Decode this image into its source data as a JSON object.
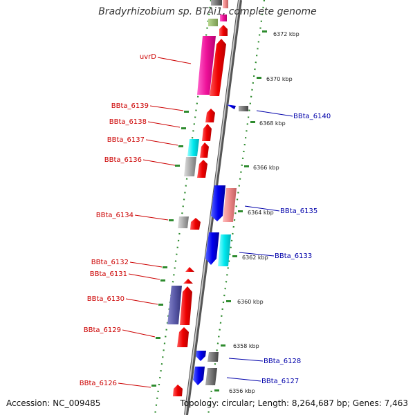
{
  "title": "Bradyrhizobium sp. BTAi1, complete genome",
  "footer": {
    "accession": "Accession: NC_009485",
    "topology": "Topology: circular; Length: 8,264,687 bp; Genes: 7,463"
  },
  "colors": {
    "minus_label": "#cc0000",
    "plus_label": "#0000aa",
    "ruler_dots": "#2e8b2e",
    "backbone": "#8a8a8a"
  },
  "scale": {
    "unit": "kbp",
    "ticks": [
      6356,
      6358,
      6360,
      6362,
      6364,
      6366,
      6368,
      6370,
      6372
    ]
  },
  "minus_strand_labels": [
    "uvrD",
    "BBta_6139",
    "BBta_6138",
    "BBta_6137",
    "BBta_6136",
    "BBta_6134",
    "BBta_6132",
    "BBta_6131",
    "BBta_6130",
    "BBta_6129",
    "BBta_6126"
  ],
  "plus_strand_labels": [
    "BBta_6140",
    "BBta_6135",
    "BBta_6133",
    "BBta_6128",
    "BBta_6127"
  ]
}
